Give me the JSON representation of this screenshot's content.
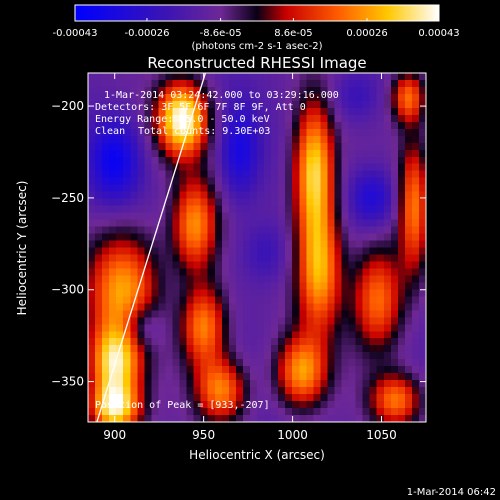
{
  "chart_data": {
    "type": "heatmap",
    "title": "Reconstructed RHESSI Image",
    "xlabel": "Heliocentric X (arcsec)",
    "ylabel": "Heliocentric Y (arcsec)",
    "xlim": [
      885,
      1075
    ],
    "ylim": [
      -372,
      -182
    ],
    "x_ticks": [
      900,
      950,
      1000,
      1050
    ],
    "y_ticks": [
      -200,
      -250,
      -300,
      -350
    ],
    "colorbar": {
      "min": -0.00043,
      "max": 0.00043,
      "tick_values": [
        -0.00043,
        -0.00026,
        -8.6e-05,
        8.6e-05,
        0.00026,
        0.00043
      ],
      "tick_labels": [
        "-0.00043",
        "-0.00026",
        "-8.6e-05",
        "8.6e-05",
        "0.00026",
        "0.00043"
      ],
      "unit_label": "(photons cm-2 s-1 asec-2)"
    },
    "annotations": {
      "time": "1-Mar-2014 03:24:42.000 to 03:29:16.000",
      "detectors": "Detectors: 3F 5F 6F 7F 8F 9F, Att 0",
      "energy": "Energy Range: 25.0 - 50.0 keV",
      "clean": "Clean",
      "total_counts": "Total counts: 9.30E+03",
      "peak": "Position of Peak = [933,-207]"
    },
    "peak": {
      "x": 933,
      "y": -207
    },
    "limb_line": {
      "x1": 890,
      "y1": -372,
      "x2": 951,
      "y2": -182
    },
    "blobs": [
      {
        "x": 938,
        "y": -207,
        "value": 0.00043,
        "sx": 10,
        "sy": 14
      },
      {
        "x": 905,
        "y": -300,
        "value": 0.00026,
        "sx": 14,
        "sy": 22
      },
      {
        "x": 900,
        "y": -340,
        "value": 0.00032,
        "sx": 10,
        "sy": 14
      },
      {
        "x": 900,
        "y": -365,
        "value": 0.00035,
        "sx": 10,
        "sy": 10
      },
      {
        "x": 945,
        "y": -265,
        "value": 0.00024,
        "sx": 9,
        "sy": 18
      },
      {
        "x": 950,
        "y": -320,
        "value": 0.00024,
        "sx": 9,
        "sy": 16
      },
      {
        "x": 960,
        "y": -355,
        "value": 0.00022,
        "sx": 10,
        "sy": 12
      },
      {
        "x": 1012,
        "y": -235,
        "value": 0.00034,
        "sx": 8,
        "sy": 26
      },
      {
        "x": 1015,
        "y": -290,
        "value": 0.00026,
        "sx": 9,
        "sy": 24
      },
      {
        "x": 1005,
        "y": -345,
        "value": 0.00025,
        "sx": 10,
        "sy": 14
      },
      {
        "x": 1048,
        "y": -305,
        "value": 0.00022,
        "sx": 10,
        "sy": 20
      },
      {
        "x": 1068,
        "y": -255,
        "value": 0.0002,
        "sx": 6,
        "sy": 26
      },
      {
        "x": 1058,
        "y": -360,
        "value": 0.0002,
        "sx": 10,
        "sy": 10
      },
      {
        "x": 1065,
        "y": -195,
        "value": 0.0002,
        "sx": 7,
        "sy": 10
      },
      {
        "x": 900,
        "y": -230,
        "value": -0.00038,
        "sx": 10,
        "sy": 16
      },
      {
        "x": 915,
        "y": -320,
        "value": -0.0003,
        "sx": 8,
        "sy": 9
      },
      {
        "x": 970,
        "y": -225,
        "value": -0.00034,
        "sx": 8,
        "sy": 18
      },
      {
        "x": 985,
        "y": -280,
        "value": -0.00024,
        "sx": 10,
        "sy": 12
      },
      {
        "x": 1045,
        "y": -250,
        "value": -0.00032,
        "sx": 9,
        "sy": 11
      },
      {
        "x": 1035,
        "y": -195,
        "value": -0.00024,
        "sx": 10,
        "sy": 10
      },
      {
        "x": 940,
        "y": -300,
        "value": -0.00014,
        "sx": 8,
        "sy": 10
      }
    ]
  },
  "footer": {
    "date_stamp": "1-Mar-2014 06:42"
  }
}
